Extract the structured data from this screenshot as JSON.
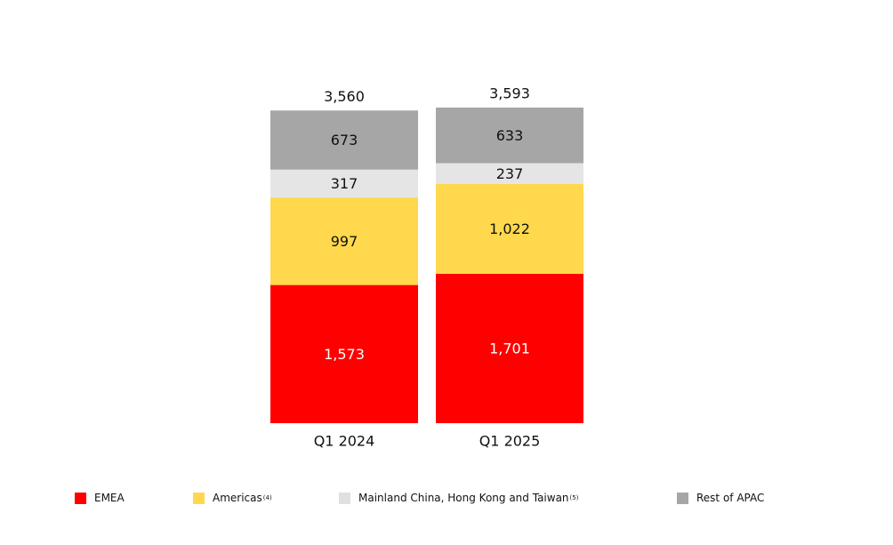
{
  "chart_data": {
    "type": "bar",
    "stacked": true,
    "categories": [
      "Q1 2024",
      "Q1 2025"
    ],
    "totals": [
      "3,560",
      "3,593"
    ],
    "series": [
      {
        "name": "EMEA",
        "values": [
          1573,
          1701
        ],
        "labels": [
          "1,573",
          "1,701"
        ],
        "color": "#ff0000",
        "label_color": "#ffffff"
      },
      {
        "name": "Americas",
        "note": "(4)",
        "values": [
          997,
          1022
        ],
        "labels": [
          "997",
          "1,022"
        ],
        "color": "#ffd84d",
        "label_color": "#111111"
      },
      {
        "name": "Mainland China, Hong Kong and Taiwan",
        "note": "(5)",
        "values": [
          317,
          237
        ],
        "labels": [
          "317",
          "237"
        ],
        "color": "#e5e5e5",
        "label_color": "#111111"
      },
      {
        "name": "Rest of APAC",
        "note": "",
        "values": [
          673,
          633
        ],
        "labels": [
          "673",
          "633"
        ],
        "color": "#a6a6a6",
        "label_color": "#111111"
      }
    ],
    "ylim": [
      0,
      3593
    ],
    "grid": false,
    "legend_position": "bottom"
  }
}
